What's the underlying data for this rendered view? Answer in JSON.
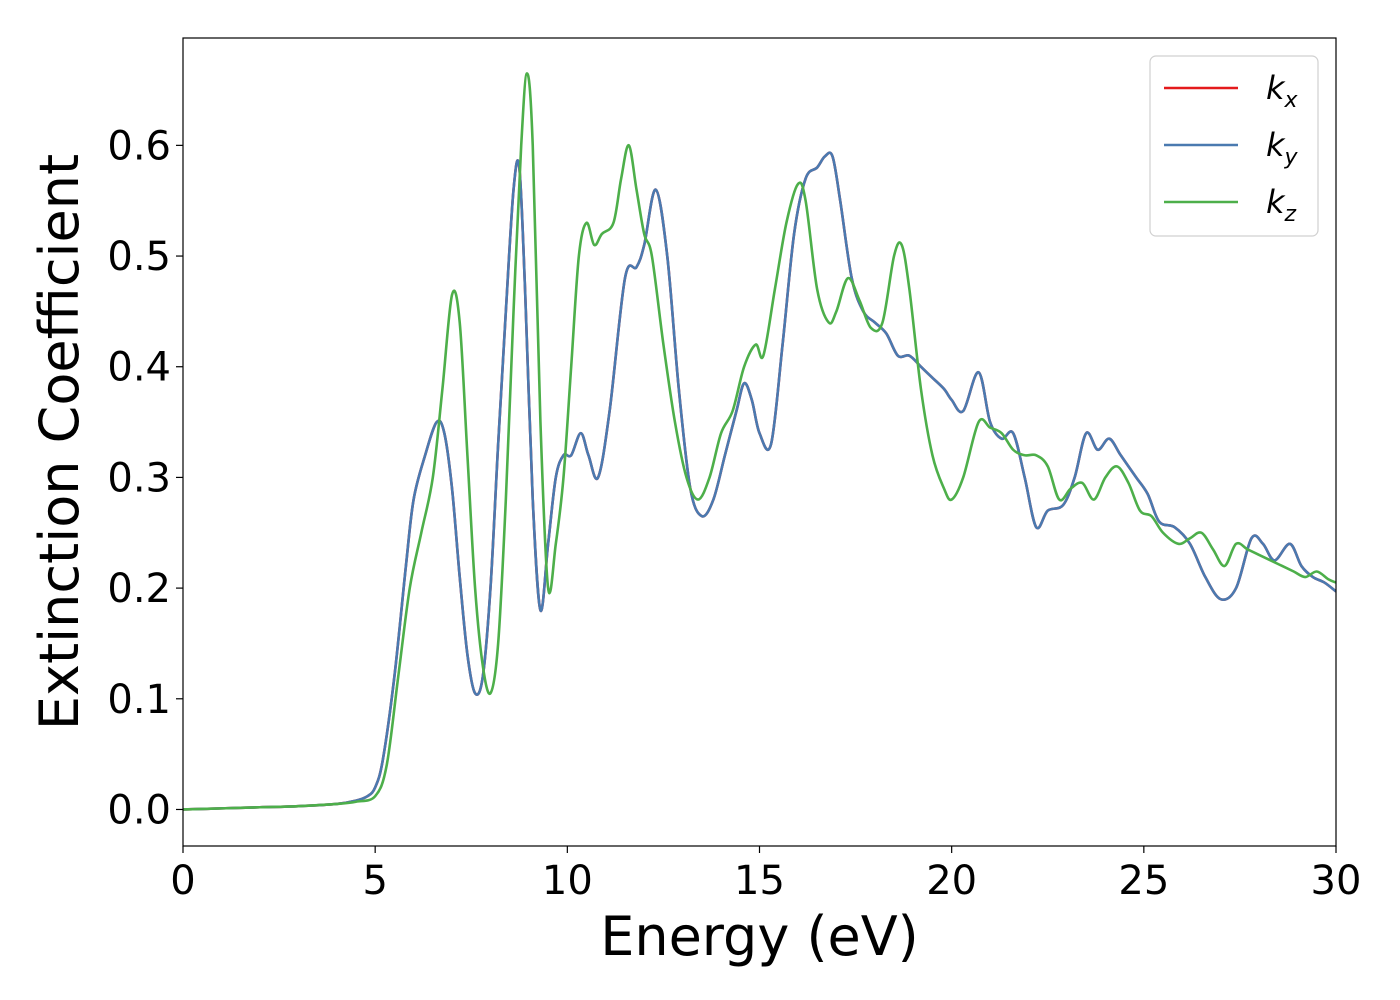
{
  "chart_data": {
    "type": "line",
    "xlabel": "Energy (eV)",
    "ylabel": "Extinction Coefficient",
    "xlim": [
      0,
      30
    ],
    "ylim": [
      -0.033,
      0.697
    ],
    "xticks": [
      0,
      5,
      10,
      15,
      20,
      25,
      30
    ],
    "xtick_labels": [
      "0",
      "5",
      "10",
      "15",
      "20",
      "25",
      "30"
    ],
    "yticks": [
      0.0,
      0.1,
      0.2,
      0.3,
      0.4,
      0.5,
      0.6
    ],
    "ytick_labels": [
      "0.0",
      "0.1",
      "0.2",
      "0.3",
      "0.4",
      "0.5",
      "0.6"
    ],
    "grid": false,
    "legend_position": "top-right",
    "series": [
      {
        "name": "k",
        "subscript": "x",
        "color": "#e41a1c",
        "x": [
          0,
          1,
          2,
          3,
          4,
          4.5,
          4.8,
          5.0,
          5.2,
          5.5,
          5.8,
          6.0,
          6.3,
          6.6,
          6.8,
          7.0,
          7.2,
          7.4,
          7.6,
          7.8,
          8.0,
          8.2,
          8.4,
          8.6,
          8.75,
          8.9,
          9.1,
          9.3,
          9.5,
          9.7,
          9.9,
          10.1,
          10.35,
          10.55,
          10.8,
          11.1,
          11.5,
          11.8,
          12.0,
          12.3,
          12.6,
          12.9,
          13.2,
          13.5,
          13.8,
          14.1,
          14.4,
          14.6,
          14.8,
          15.0,
          15.3,
          15.6,
          15.9,
          16.2,
          16.5,
          16.7,
          16.9,
          17.1,
          17.4,
          17.7,
          18.0,
          18.3,
          18.6,
          18.9,
          19.2,
          19.5,
          19.8,
          20.0,
          20.3,
          20.7,
          21.0,
          21.3,
          21.6,
          21.9,
          22.2,
          22.5,
          22.9,
          23.2,
          23.5,
          23.8,
          24.1,
          24.4,
          24.8,
          25.1,
          25.4,
          25.8,
          26.2,
          26.6,
          27.0,
          27.4,
          27.8,
          28.1,
          28.4,
          28.8,
          29.1,
          29.4,
          29.7,
          30
        ],
        "y": [
          0,
          0.001,
          0.002,
          0.003,
          0.005,
          0.008,
          0.012,
          0.02,
          0.045,
          0.12,
          0.22,
          0.28,
          0.32,
          0.35,
          0.34,
          0.29,
          0.21,
          0.14,
          0.105,
          0.12,
          0.2,
          0.33,
          0.45,
          0.56,
          0.58,
          0.47,
          0.28,
          0.18,
          0.24,
          0.3,
          0.32,
          0.32,
          0.34,
          0.32,
          0.3,
          0.36,
          0.48,
          0.49,
          0.51,
          0.56,
          0.5,
          0.38,
          0.29,
          0.265,
          0.28,
          0.32,
          0.36,
          0.385,
          0.37,
          0.34,
          0.33,
          0.42,
          0.52,
          0.57,
          0.58,
          0.59,
          0.59,
          0.55,
          0.48,
          0.45,
          0.44,
          0.43,
          0.41,
          0.41,
          0.4,
          0.39,
          0.38,
          0.37,
          0.36,
          0.395,
          0.35,
          0.335,
          0.34,
          0.3,
          0.255,
          0.27,
          0.275,
          0.3,
          0.34,
          0.325,
          0.335,
          0.32,
          0.3,
          0.285,
          0.26,
          0.255,
          0.24,
          0.21,
          0.19,
          0.2,
          0.245,
          0.24,
          0.225,
          0.24,
          0.22,
          0.21,
          0.205,
          0.197
        ]
      },
      {
        "name": "k",
        "subscript": "y",
        "color": "#4a7ab0",
        "x": [
          0,
          1,
          2,
          3,
          4,
          4.5,
          4.8,
          5.0,
          5.2,
          5.5,
          5.8,
          6.0,
          6.3,
          6.6,
          6.8,
          7.0,
          7.2,
          7.4,
          7.6,
          7.8,
          8.0,
          8.2,
          8.4,
          8.6,
          8.75,
          8.9,
          9.1,
          9.3,
          9.5,
          9.7,
          9.9,
          10.1,
          10.35,
          10.55,
          10.8,
          11.1,
          11.5,
          11.8,
          12.0,
          12.3,
          12.6,
          12.9,
          13.2,
          13.5,
          13.8,
          14.1,
          14.4,
          14.6,
          14.8,
          15.0,
          15.3,
          15.6,
          15.9,
          16.2,
          16.5,
          16.7,
          16.9,
          17.1,
          17.4,
          17.7,
          18.0,
          18.3,
          18.6,
          18.9,
          19.2,
          19.5,
          19.8,
          20.0,
          20.3,
          20.7,
          21.0,
          21.3,
          21.6,
          21.9,
          22.2,
          22.5,
          22.9,
          23.2,
          23.5,
          23.8,
          24.1,
          24.4,
          24.8,
          25.1,
          25.4,
          25.8,
          26.2,
          26.6,
          27.0,
          27.4,
          27.8,
          28.1,
          28.4,
          28.8,
          29.1,
          29.4,
          29.7,
          30
        ],
        "y": [
          0,
          0.001,
          0.002,
          0.003,
          0.005,
          0.008,
          0.012,
          0.02,
          0.045,
          0.12,
          0.22,
          0.28,
          0.32,
          0.35,
          0.34,
          0.29,
          0.21,
          0.14,
          0.105,
          0.12,
          0.2,
          0.33,
          0.45,
          0.56,
          0.58,
          0.47,
          0.28,
          0.18,
          0.24,
          0.3,
          0.32,
          0.32,
          0.34,
          0.32,
          0.3,
          0.36,
          0.48,
          0.49,
          0.51,
          0.56,
          0.5,
          0.38,
          0.29,
          0.265,
          0.28,
          0.32,
          0.36,
          0.385,
          0.37,
          0.34,
          0.33,
          0.42,
          0.52,
          0.57,
          0.58,
          0.59,
          0.59,
          0.55,
          0.48,
          0.45,
          0.44,
          0.43,
          0.41,
          0.41,
          0.4,
          0.39,
          0.38,
          0.37,
          0.36,
          0.395,
          0.35,
          0.335,
          0.34,
          0.3,
          0.255,
          0.27,
          0.275,
          0.3,
          0.34,
          0.325,
          0.335,
          0.32,
          0.3,
          0.285,
          0.26,
          0.255,
          0.24,
          0.21,
          0.19,
          0.2,
          0.245,
          0.24,
          0.225,
          0.24,
          0.22,
          0.21,
          0.205,
          0.197
        ]
      },
      {
        "name": "k",
        "subscript": "z",
        "color": "#4daf4a",
        "x": [
          0,
          1,
          2,
          3,
          4,
          4.5,
          5.0,
          5.3,
          5.6,
          5.9,
          6.2,
          6.5,
          6.75,
          7.0,
          7.2,
          7.4,
          7.6,
          7.8,
          8.0,
          8.2,
          8.4,
          8.6,
          8.8,
          8.95,
          9.1,
          9.3,
          9.5,
          9.7,
          9.9,
          10.1,
          10.3,
          10.5,
          10.7,
          10.9,
          11.2,
          11.4,
          11.6,
          11.8,
          12.0,
          12.2,
          12.5,
          12.8,
          13.1,
          13.4,
          13.7,
          14.0,
          14.3,
          14.6,
          14.9,
          15.1,
          15.4,
          15.7,
          16.0,
          16.2,
          16.5,
          16.8,
          17.0,
          17.3,
          17.6,
          17.9,
          18.2,
          18.5,
          18.7,
          18.9,
          19.2,
          19.5,
          19.8,
          20.0,
          20.3,
          20.7,
          21.0,
          21.3,
          21.6,
          21.9,
          22.2,
          22.5,
          22.8,
          23.1,
          23.4,
          23.7,
          24.0,
          24.3,
          24.6,
          24.9,
          25.2,
          25.5,
          25.9,
          26.2,
          26.5,
          26.8,
          27.1,
          27.4,
          27.7,
          28.0,
          28.3,
          28.6,
          28.9,
          29.2,
          29.5,
          29.8,
          30
        ],
        "y": [
          0,
          0.001,
          0.002,
          0.003,
          0.005,
          0.007,
          0.012,
          0.04,
          0.12,
          0.2,
          0.25,
          0.3,
          0.38,
          0.465,
          0.44,
          0.32,
          0.2,
          0.13,
          0.105,
          0.15,
          0.28,
          0.45,
          0.6,
          0.665,
          0.6,
          0.35,
          0.2,
          0.24,
          0.3,
          0.4,
          0.5,
          0.53,
          0.51,
          0.52,
          0.53,
          0.57,
          0.6,
          0.56,
          0.52,
          0.5,
          0.42,
          0.35,
          0.3,
          0.28,
          0.3,
          0.34,
          0.36,
          0.4,
          0.42,
          0.41,
          0.47,
          0.53,
          0.565,
          0.55,
          0.47,
          0.44,
          0.45,
          0.48,
          0.46,
          0.435,
          0.44,
          0.5,
          0.51,
          0.47,
          0.38,
          0.32,
          0.29,
          0.28,
          0.3,
          0.35,
          0.345,
          0.34,
          0.325,
          0.32,
          0.32,
          0.31,
          0.28,
          0.29,
          0.295,
          0.28,
          0.3,
          0.31,
          0.295,
          0.27,
          0.265,
          0.25,
          0.24,
          0.245,
          0.25,
          0.235,
          0.22,
          0.24,
          0.235,
          0.23,
          0.225,
          0.22,
          0.215,
          0.21,
          0.215,
          0.208,
          0.205
        ]
      }
    ]
  }
}
